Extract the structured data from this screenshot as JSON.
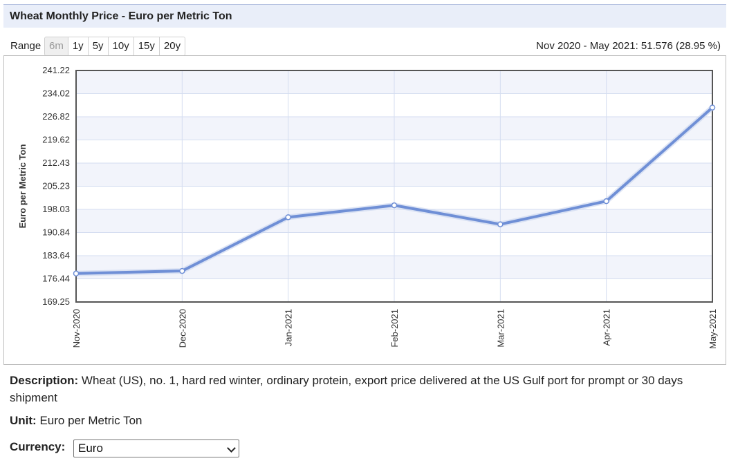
{
  "header": {
    "title": "Wheat Monthly Price - Euro per Metric Ton"
  },
  "range": {
    "label": "Range",
    "buttons": [
      "6m",
      "1y",
      "5y",
      "10y",
      "15y",
      "20y"
    ],
    "active": "6m"
  },
  "change_summary": "Nov 2020 - May 2021: 51.576 (28.95 %)",
  "chart_data": {
    "type": "line",
    "title": "",
    "xlabel": "",
    "ylabel": "Euro per Metric Ton",
    "categories": [
      "Nov-2020",
      "Dec-2020",
      "Jan-2021",
      "Feb-2021",
      "Mar-2021",
      "Apr-2021",
      "May-2021"
    ],
    "series": [
      {
        "values": [
          178.1,
          178.9,
          195.6,
          199.3,
          193.4,
          200.6,
          229.7
        ]
      }
    ],
    "y_ticks": [
      "169.25",
      "176.44",
      "183.64",
      "190.84",
      "198.03",
      "205.23",
      "212.43",
      "219.62",
      "226.82",
      "234.02",
      "241.22"
    ],
    "ylim": [
      169.25,
      241.22
    ],
    "grid": true,
    "line_color": "#6f8fd6"
  },
  "description": {
    "label": "Description:",
    "text": "Wheat (US), no. 1, hard red winter, ordinary protein, export price delivered at the US Gulf port for prompt or 30 days shipment"
  },
  "unit": {
    "label": "Unit:",
    "text": "Euro per Metric Ton"
  },
  "currency": {
    "label": "Currency:",
    "value": "Euro"
  }
}
